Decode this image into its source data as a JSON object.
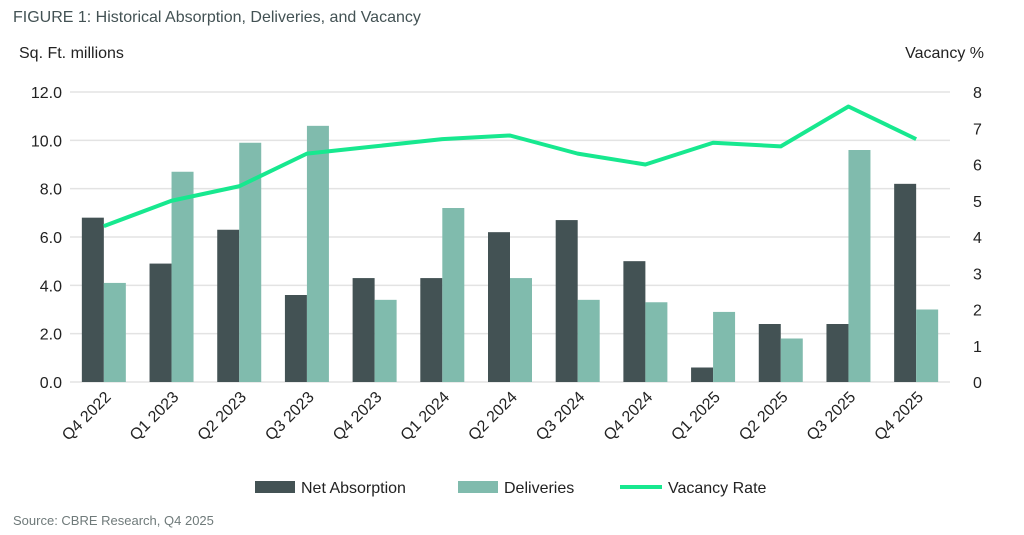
{
  "chart_data": {
    "type": "bar",
    "title": "FIGURE 1: Historical Absorption, Deliveries, and Vacancy",
    "ylabel": "Sq. Ft. millions",
    "y2label": "Vacancy %",
    "ylim": [
      0,
      12
    ],
    "y2lim": [
      0,
      8
    ],
    "yticks": [
      "0.0",
      "2.0",
      "4.0",
      "6.0",
      "8.0",
      "10.0",
      "12.0"
    ],
    "y2ticks": [
      "0",
      "1",
      "2",
      "3",
      "4",
      "5",
      "6",
      "7",
      "8"
    ],
    "grid": true,
    "legend": "bottom",
    "categories": [
      "Q4 2022",
      "Q1 2023",
      "Q2 2023",
      "Q3 2023",
      "Q4 2023",
      "Q1 2024",
      "Q2 2024",
      "Q3 2024",
      "Q4 2024",
      "Q1 2025",
      "Q2 2025",
      "Q3 2025",
      "Q4 2025"
    ],
    "series": [
      {
        "name": "Net Absorption",
        "type": "bar",
        "axis": "left",
        "color": "#435254",
        "values": [
          6.8,
          4.9,
          6.3,
          3.6,
          4.3,
          4.3,
          6.2,
          6.7,
          5.0,
          0.6,
          2.4,
          2.4,
          8.2
        ]
      },
      {
        "name": "Deliveries",
        "type": "bar",
        "axis": "left",
        "color": "#80bbad",
        "values": [
          4.1,
          8.7,
          9.9,
          10.6,
          3.4,
          7.2,
          4.3,
          3.4,
          3.3,
          2.9,
          1.8,
          9.6,
          3.0
        ]
      },
      {
        "name": "Vacancy Rate",
        "type": "line",
        "axis": "right",
        "color": "#17e88f",
        "values": [
          4.3,
          5.0,
          5.4,
          6.3,
          6.5,
          6.7,
          6.8,
          6.3,
          6.0,
          6.6,
          6.5,
          7.6,
          6.7
        ]
      }
    ]
  },
  "source": "Source: CBRE Research, Q4 2025"
}
